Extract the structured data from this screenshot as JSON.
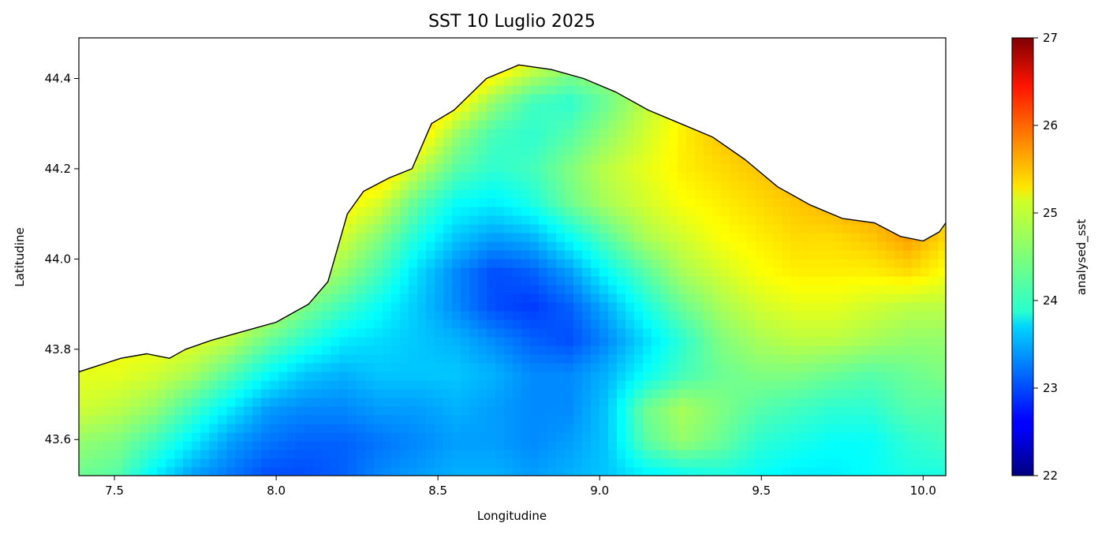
{
  "chart_data": {
    "type": "heatmap",
    "title": "SST 10 Luglio 2025",
    "xlabel": "Longitudine",
    "ylabel": "Latitudine",
    "colorbar_label": "analysed_sst",
    "colormap": "jet",
    "xlim": [
      7.39,
      10.07
    ],
    "ylim": [
      43.52,
      44.49
    ],
    "xticks": [
      7.5,
      8.0,
      8.5,
      9.0,
      9.5,
      10.0
    ],
    "xtick_labels": [
      "7.5",
      "8.0",
      "8.5",
      "9.0",
      "9.5",
      "10.0"
    ],
    "yticks": [
      43.6,
      43.8,
      44.0,
      44.2,
      44.4
    ],
    "ytick_labels": [
      "43.6",
      "43.8",
      "44.0",
      "44.2",
      "44.4"
    ],
    "vmin": 22,
    "vmax": 27,
    "colorbar_ticks": [
      22,
      23,
      24,
      25,
      26,
      27
    ],
    "colorbar_tick_labels": [
      "22",
      "23",
      "24",
      "25",
      "26",
      "27"
    ],
    "coastline": [
      [
        7.39,
        43.75
      ],
      [
        7.52,
        43.78
      ],
      [
        7.6,
        43.79
      ],
      [
        7.67,
        43.78
      ],
      [
        7.72,
        43.8
      ],
      [
        7.8,
        43.82
      ],
      [
        7.9,
        43.84
      ],
      [
        8.0,
        43.86
      ],
      [
        8.1,
        43.9
      ],
      [
        8.16,
        43.95
      ],
      [
        8.18,
        44.0
      ],
      [
        8.2,
        44.05
      ],
      [
        8.22,
        44.1
      ],
      [
        8.27,
        44.15
      ],
      [
        8.35,
        44.18
      ],
      [
        8.42,
        44.2
      ],
      [
        8.45,
        44.25
      ],
      [
        8.48,
        44.3
      ],
      [
        8.55,
        44.33
      ],
      [
        8.65,
        44.4
      ],
      [
        8.75,
        44.43
      ],
      [
        8.85,
        44.42
      ],
      [
        8.95,
        44.4
      ],
      [
        9.05,
        44.37
      ],
      [
        9.15,
        44.33
      ],
      [
        9.25,
        44.3
      ],
      [
        9.35,
        44.27
      ],
      [
        9.45,
        44.22
      ],
      [
        9.55,
        44.16
      ],
      [
        9.65,
        44.12
      ],
      [
        9.75,
        44.09
      ],
      [
        9.85,
        44.08
      ],
      [
        9.93,
        44.05
      ],
      [
        10.0,
        44.04
      ],
      [
        10.05,
        44.06
      ],
      [
        10.07,
        44.08
      ]
    ],
    "sst_field": [
      [
        24.4,
        24.3,
        23.8,
        23.4,
        23.2,
        23.0,
        23.0,
        23.1,
        23.3,
        23.4,
        23.5,
        23.5,
        23.4,
        23.5,
        23.6,
        23.8,
        23.9,
        24.0,
        23.9,
        23.8,
        23.8,
        23.9,
        24.0,
        24.0
      ],
      [
        24.6,
        24.5,
        24.2,
        23.8,
        23.4,
        23.2,
        23.1,
        23.1,
        23.2,
        23.3,
        23.4,
        23.4,
        23.3,
        23.4,
        23.6,
        24.3,
        24.6,
        24.4,
        24.1,
        24.0,
        23.9,
        23.9,
        24.1,
        24.2
      ],
      [
        24.9,
        24.8,
        24.6,
        24.2,
        23.8,
        23.4,
        23.3,
        23.3,
        23.4,
        23.4,
        23.5,
        23.4,
        23.3,
        23.3,
        23.6,
        24.4,
        24.7,
        24.5,
        24.3,
        24.2,
        24.1,
        24.1,
        24.3,
        24.3
      ],
      [
        25.0,
        25.0,
        24.9,
        24.7,
        24.3,
        23.9,
        23.6,
        23.5,
        23.6,
        23.6,
        23.6,
        23.5,
        23.3,
        23.3,
        23.5,
        23.9,
        24.2,
        24.4,
        24.5,
        24.5,
        24.4,
        24.3,
        24.4,
        24.5
      ],
      [
        25.1,
        25.1,
        25.1,
        25.0,
        24.8,
        24.4,
        24.1,
        23.8,
        23.7,
        23.6,
        23.5,
        23.3,
        23.1,
        23.0,
        23.3,
        23.7,
        24.1,
        24.5,
        24.7,
        24.8,
        24.8,
        24.7,
        24.6,
        24.6
      ],
      [
        25.1,
        25.2,
        25.3,
        25.2,
        25.1,
        24.9,
        24.5,
        24.2,
        23.9,
        23.6,
        23.3,
        23.0,
        22.9,
        23.1,
        23.5,
        24.0,
        24.4,
        24.7,
        24.9,
        25.0,
        25.0,
        24.9,
        24.8,
        24.8
      ],
      [
        25.2,
        25.3,
        25.4,
        25.3,
        25.3,
        25.1,
        24.9,
        24.6,
        24.2,
        23.7,
        23.3,
        23.0,
        23.1,
        23.4,
        23.9,
        24.3,
        24.7,
        24.9,
        25.1,
        25.2,
        25.2,
        25.2,
        25.3,
        25.1
      ],
      [
        25.2,
        25.3,
        25.4,
        25.4,
        25.4,
        25.3,
        25.2,
        24.9,
        24.5,
        24.0,
        23.6,
        23.4,
        23.5,
        23.9,
        24.3,
        24.7,
        24.9,
        25.1,
        25.2,
        25.3,
        25.3,
        25.4,
        25.6,
        25.3
      ],
      [
        25.2,
        25.3,
        25.4,
        25.5,
        25.5,
        25.4,
        25.3,
        25.2,
        24.9,
        24.3,
        23.9,
        23.8,
        24.0,
        24.4,
        24.7,
        24.9,
        25.1,
        25.2,
        25.3,
        25.4,
        25.5,
        25.6,
        25.6,
        25.3
      ],
      [
        25.2,
        25.3,
        25.4,
        25.5,
        25.6,
        25.6,
        25.5,
        25.4,
        25.4,
        24.8,
        24.3,
        24.1,
        24.2,
        24.5,
        24.8,
        25.0,
        25.2,
        25.3,
        25.4,
        25.5,
        25.6,
        25.6,
        25.5,
        25.3
      ],
      [
        25.2,
        25.3,
        25.4,
        25.5,
        25.6,
        25.6,
        25.6,
        25.6,
        25.7,
        25.3,
        24.6,
        24.2,
        24.1,
        24.3,
        24.6,
        24.9,
        25.2,
        25.4,
        25.5,
        25.6,
        25.5,
        25.4,
        25.3,
        25.2
      ],
      [
        25.2,
        25.3,
        25.4,
        25.5,
        25.6,
        25.7,
        25.7,
        25.7,
        25.8,
        25.7,
        25.2,
        24.6,
        24.2,
        24.1,
        24.4,
        24.8,
        25.1,
        25.4,
        25.6,
        25.7,
        25.5,
        25.3,
        25.2,
        25.2
      ],
      [
        25.2,
        25.3,
        25.4,
        25.5,
        25.6,
        25.7,
        25.8,
        25.8,
        25.9,
        25.9,
        25.7,
        25.3,
        24.9,
        24.6,
        24.7,
        25.0,
        25.3,
        25.6,
        25.9,
        25.8,
        25.5,
        25.3,
        25.2,
        25.2
      ],
      [
        25.2,
        25.3,
        25.4,
        25.5,
        25.6,
        25.7,
        25.8,
        25.9,
        26.0,
        26.2,
        26.3,
        26.1,
        25.7,
        25.5,
        25.5,
        25.6,
        25.8,
        25.9,
        26.0,
        25.8,
        25.5,
        25.3,
        25.2,
        25.2
      ]
    ]
  }
}
